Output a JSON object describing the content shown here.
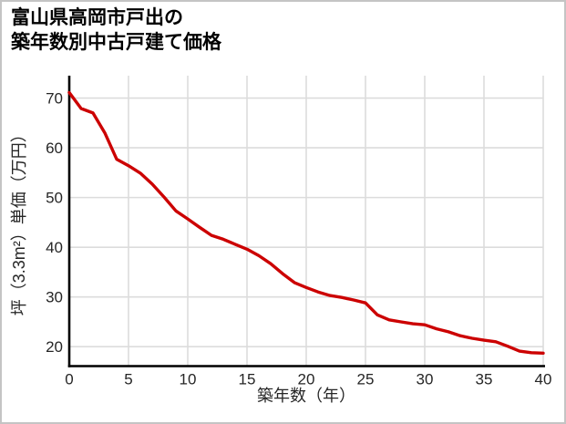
{
  "chart_data": {
    "type": "line",
    "title_line1": "富山県高岡市戸出の",
    "title_line2": "築年数別中古戸建て価格",
    "xlabel": "築年数（年）",
    "ylabel": "坪（3.3m²）単価（万円）",
    "x": [
      0,
      1,
      2,
      3,
      4,
      5,
      6,
      7,
      8,
      9,
      10,
      11,
      12,
      13,
      14,
      15,
      16,
      17,
      18,
      19,
      20,
      21,
      22,
      23,
      24,
      25,
      26,
      27,
      28,
      29,
      30,
      31,
      32,
      33,
      34,
      35,
      36,
      37,
      38,
      39,
      40
    ],
    "values": [
      71.1,
      67.9,
      67.0,
      63.0,
      57.7,
      56.4,
      54.9,
      52.7,
      50.1,
      47.3,
      45.7,
      44.0,
      42.4,
      41.6,
      40.6,
      39.6,
      38.3,
      36.7,
      34.7,
      32.9,
      31.9,
      31.0,
      30.3,
      29.9,
      29.4,
      28.8,
      26.4,
      25.4,
      25.0,
      24.6,
      24.4,
      23.6,
      23.0,
      22.2,
      21.7,
      21.3,
      21.0,
      20.1,
      19.1,
      18.8,
      18.7
    ],
    "xticks": [
      0,
      5,
      10,
      15,
      20,
      25,
      30,
      35,
      40
    ],
    "yticks": [
      20,
      30,
      40,
      50,
      60,
      70
    ],
    "xlim": [
      0,
      40
    ],
    "ylim": [
      16.1,
      74.5
    ],
    "grid": true,
    "legend_position": "none",
    "line_color": "#cc0000",
    "grid_color": "#dcdcdc",
    "axis_color": "#000000",
    "tick_color": "#262626",
    "title_color": "#000000",
    "background_color": "#ffffff",
    "border_color": "#c4c4c4"
  }
}
